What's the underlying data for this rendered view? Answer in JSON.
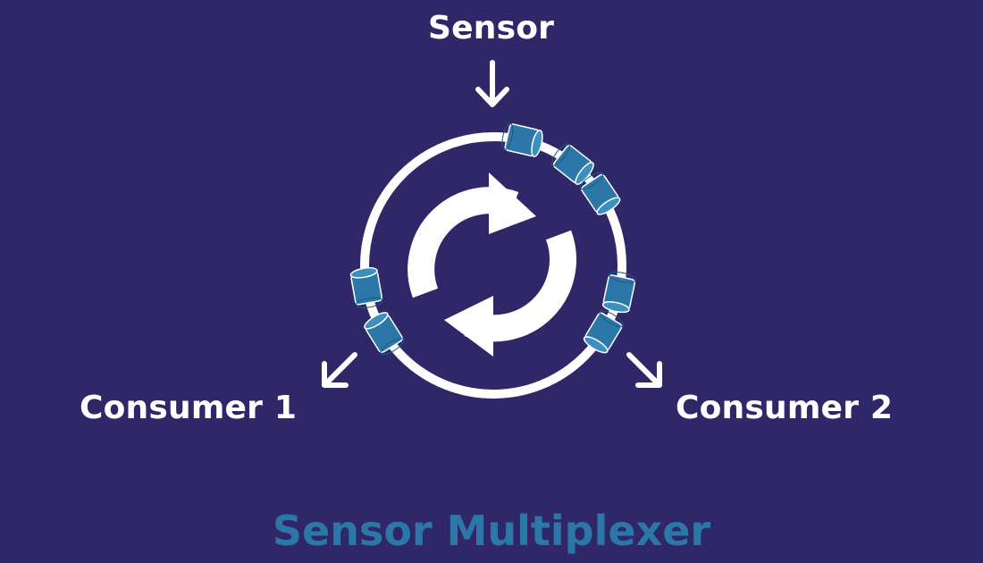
{
  "diagram": {
    "source_label": "Sensor",
    "consumer_left_label": "Consumer 1",
    "consumer_right_label": "Consumer 2",
    "title": "Sensor Multiplexer"
  },
  "colors": {
    "background": "#302769",
    "foreground": "#ffffff",
    "accent": "#2b78a8",
    "accent_light": "#3d8fbf"
  },
  "icons": {
    "center": "refresh-cycle-icon",
    "buffer_item": "cylinder-segment-icon",
    "arrows": [
      "arrow-down-icon",
      "arrow-down-left-icon",
      "arrow-down-right-icon"
    ]
  }
}
